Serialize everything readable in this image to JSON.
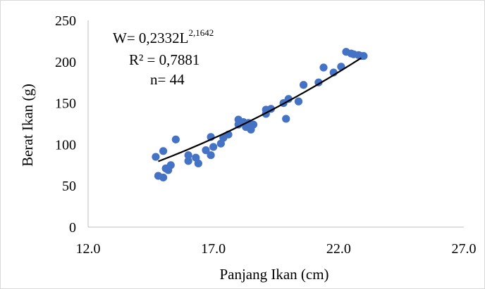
{
  "chart_data": {
    "type": "scatter",
    "xlabel": "Panjang Ikan (cm)",
    "ylabel": "Berat Ikan (g)",
    "xlim": [
      12.0,
      27.0
    ],
    "ylim": [
      0,
      250
    ],
    "x_ticks": [
      "12.0",
      "17.0",
      "22.0",
      "27.0"
    ],
    "y_ticks": [
      "0",
      "50",
      "100",
      "150",
      "200",
      "250"
    ],
    "grid": false,
    "legend": "none",
    "point_color": "#4472c4",
    "trendline_color": "#000000",
    "annotations": {
      "equation_base": "W= 0,2332L",
      "equation_exponent": "2,1642",
      "r_squared": "R² = 0,7881",
      "n": "n= 44"
    },
    "trendline": {
      "a": 0.2332,
      "b": 2.1642,
      "x_start": 14.8,
      "x_end": 22.9
    },
    "points": [
      [
        14.7,
        85
      ],
      [
        14.8,
        62
      ],
      [
        15.0,
        60
      ],
      [
        15.0,
        92
      ],
      [
        15.1,
        71
      ],
      [
        15.2,
        69
      ],
      [
        15.3,
        75
      ],
      [
        15.5,
        106
      ],
      [
        16.0,
        87
      ],
      [
        16.0,
        80
      ],
      [
        16.3,
        84
      ],
      [
        16.4,
        77
      ],
      [
        16.7,
        93
      ],
      [
        16.9,
        109
      ],
      [
        16.9,
        87
      ],
      [
        17.0,
        97
      ],
      [
        17.3,
        101
      ],
      [
        17.4,
        108
      ],
      [
        17.6,
        112
      ],
      [
        18.0,
        130
      ],
      [
        18.0,
        124
      ],
      [
        18.2,
        127
      ],
      [
        18.3,
        121
      ],
      [
        18.4,
        126
      ],
      [
        18.5,
        118
      ],
      [
        18.6,
        124
      ],
      [
        19.1,
        137
      ],
      [
        19.1,
        142
      ],
      [
        19.3,
        143
      ],
      [
        19.8,
        150
      ],
      [
        19.9,
        131
      ],
      [
        20.0,
        155
      ],
      [
        20.4,
        152
      ],
      [
        20.6,
        172
      ],
      [
        21.2,
        175
      ],
      [
        21.4,
        193
      ],
      [
        21.8,
        187
      ],
      [
        22.1,
        194
      ],
      [
        22.3,
        212
      ],
      [
        22.5,
        210
      ],
      [
        22.6,
        209
      ],
      [
        22.8,
        208
      ],
      [
        22.9,
        207
      ],
      [
        23.0,
        207
      ]
    ]
  }
}
